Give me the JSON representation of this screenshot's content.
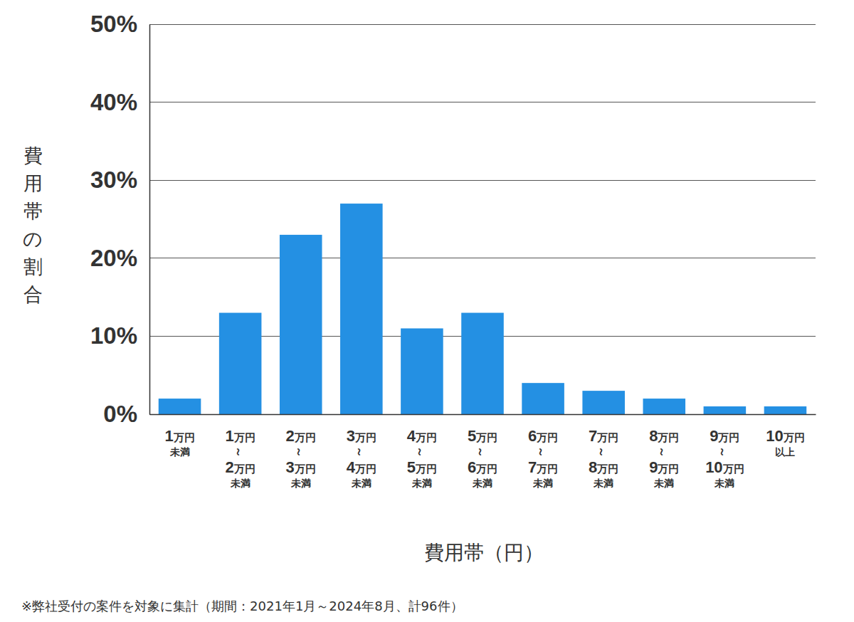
{
  "chart_data": {
    "type": "bar",
    "categories": [
      "1万円\n未満",
      "1万円\n～\n2万円\n未満",
      "2万円\n～\n3万円\n未満",
      "3万円\n～\n4万円\n未満",
      "4万円\n～\n5万円\n未満",
      "5万円\n～\n6万円\n未満",
      "6万円\n～\n7万円\n未満",
      "7万円\n～\n8万円\n未満",
      "8万円\n～\n9万円\n未満",
      "9万円\n～\n10万円\n未満",
      "10万円\n以上"
    ],
    "values": [
      2,
      13,
      23,
      27,
      11,
      13,
      4,
      3,
      2,
      1,
      1
    ],
    "color": "#2490e3",
    "ylim": [
      0,
      50
    ],
    "yticks": [
      {
        "value": 0,
        "label": "0%"
      },
      {
        "value": 10,
        "label": "10%"
      },
      {
        "value": 20,
        "label": "20%"
      },
      {
        "value": 30,
        "label": "30%"
      },
      {
        "value": 40,
        "label": "40%"
      },
      {
        "value": 50,
        "label": "50%"
      }
    ],
    "grid": true,
    "y_label": "費用帯の割合",
    "x_label": "費用帯（円）",
    "note": "※弊社受付の案件を対象に集計（期間：2021年1月～2024年8月、計96件）"
  }
}
